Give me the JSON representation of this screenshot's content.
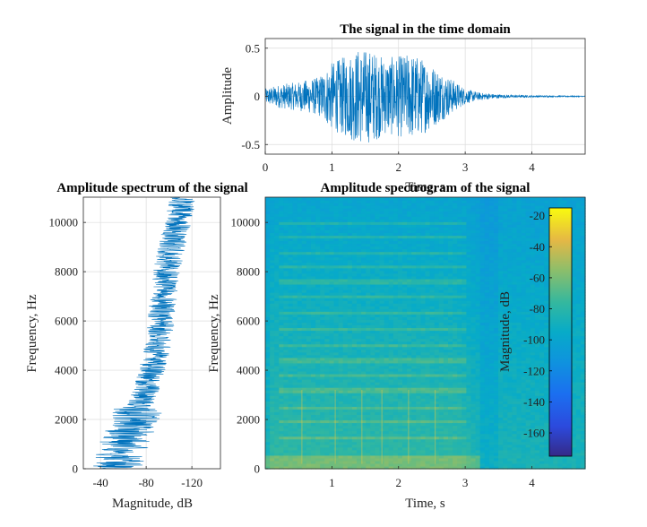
{
  "chart_data": [
    {
      "id": "time",
      "type": "line",
      "title": "The signal in the time domain",
      "xlabel": "Time, s",
      "ylabel": "Amplitude",
      "xlim": [
        0,
        4.8
      ],
      "ylim": [
        -0.6,
        0.6
      ],
      "xticks": [
        0,
        1,
        2,
        3,
        4
      ],
      "yticks": [
        -0.5,
        0,
        0.5
      ],
      "xtick_labels": [
        "0",
        "1",
        "2",
        "3",
        "4"
      ],
      "ytick_labels": [
        "-0.5",
        "0",
        "0.5"
      ],
      "grid": true,
      "color": "#0072BD",
      "envelope": {
        "t": [
          0,
          0.2,
          0.5,
          0.8,
          1.0,
          1.2,
          1.4,
          1.6,
          1.8,
          2.0,
          2.2,
          2.4,
          2.6,
          2.8,
          3.0,
          3.2,
          3.5,
          4.0,
          4.8
        ],
        "amp": [
          0.08,
          0.12,
          0.15,
          0.2,
          0.35,
          0.42,
          0.5,
          0.48,
          0.4,
          0.42,
          0.45,
          0.38,
          0.28,
          0.18,
          0.08,
          0.04,
          0.02,
          0.01,
          0.005
        ]
      }
    },
    {
      "id": "spectrum",
      "type": "line",
      "title": "Amplitude spectrum of the signal",
      "xlabel": "Magnitude, dB",
      "ylabel": "Frequency, Hz",
      "xlim": [
        -25,
        -145
      ],
      "ylim": [
        0,
        11025
      ],
      "xticks": [
        -40,
        -80,
        -120
      ],
      "yticks": [
        0,
        2000,
        4000,
        6000,
        8000,
        10000
      ],
      "xtick_labels": [
        "-40",
        "-80",
        "-120"
      ],
      "ytick_labels": [
        "0",
        "2000",
        "4000",
        "6000",
        "8000",
        "10000"
      ],
      "grid": true,
      "color": "#0072BD",
      "trend": {
        "freq": [
          0,
          1000,
          2000,
          3000,
          4000,
          5000,
          6000,
          7000,
          8000,
          9000,
          10000,
          11000
        ],
        "mag_db": [
          -55,
          -60,
          -70,
          -78,
          -85,
          -90,
          -93,
          -95,
          -98,
          -102,
          -108,
          -112
        ]
      }
    },
    {
      "id": "spectrogram",
      "type": "heatmap",
      "title": "Amplitude spectrogram of the signal",
      "xlabel": "Time, s",
      "ylabel": "Frequency, Hz",
      "xlim": [
        0,
        4.8
      ],
      "ylim": [
        0,
        11025
      ],
      "xticks": [
        1,
        2,
        3,
        4
      ],
      "yticks": [
        0,
        2000,
        4000,
        6000,
        8000,
        10000
      ],
      "xtick_labels": [
        "1",
        "2",
        "3",
        "4"
      ],
      "ytick_labels": [
        "0",
        "2000",
        "4000",
        "6000",
        "8000",
        "10000"
      ],
      "colorbar": {
        "label": "Magnitude, dB",
        "range": [
          -175,
          -15
        ],
        "ticks": [
          -20,
          -40,
          -60,
          -80,
          -100,
          -120,
          -140,
          -160
        ],
        "tick_labels": [
          "-20",
          "-40",
          "-60",
          "-80",
          "-100",
          "-120",
          "-140",
          "-160"
        ],
        "location": "inside-right",
        "colormap": "parula"
      },
      "harmonic_bands_hz": [
        1300,
        1900,
        2500,
        3200,
        3800,
        4400,
        5000,
        5700,
        6300,
        7000,
        7600,
        8200,
        8800,
        9400,
        10000
      ],
      "note_onsets_s": [
        0.55,
        1.05,
        1.45,
        1.75,
        2.15,
        2.55
      ]
    }
  ]
}
